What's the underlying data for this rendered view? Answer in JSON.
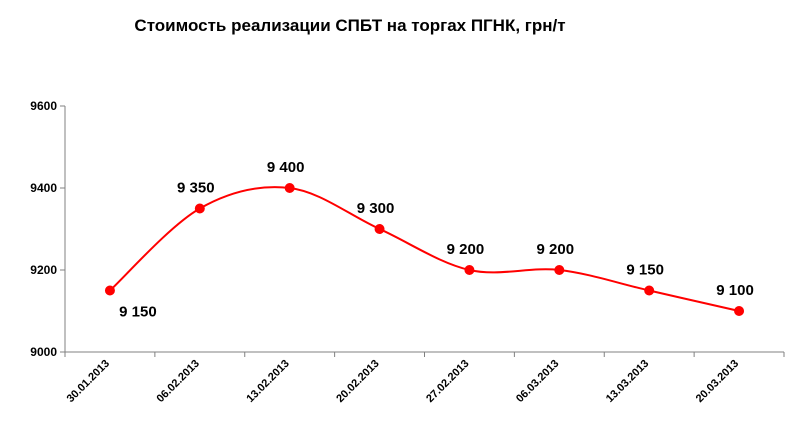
{
  "chart_data": {
    "type": "line",
    "title": "Стоимость реализации СПБТ на торгах ПГНК, грн/т",
    "xlabel": "",
    "ylabel": "",
    "categories": [
      "30.01.2013",
      "06.02.2013",
      "13.02.2013",
      "20.02.2013",
      "27.02.2013",
      "06.03.2013",
      "13.03.2013",
      "20.03.2013"
    ],
    "series": [
      {
        "values": [
          9150,
          9350,
          9400,
          9300,
          9200,
          9200,
          9150,
          9100
        ],
        "data_labels": [
          "9 150",
          "9 350",
          "9 400",
          "9 300",
          "9 200",
          "9 200",
          "9 150",
          "9 100"
        ],
        "color": "#ff0000",
        "smooth": true
      }
    ],
    "yticks": [
      9000,
      9200,
      9400,
      9600
    ],
    "ylim": [
      9000,
      9600
    ],
    "grid": false,
    "legend": "none"
  }
}
